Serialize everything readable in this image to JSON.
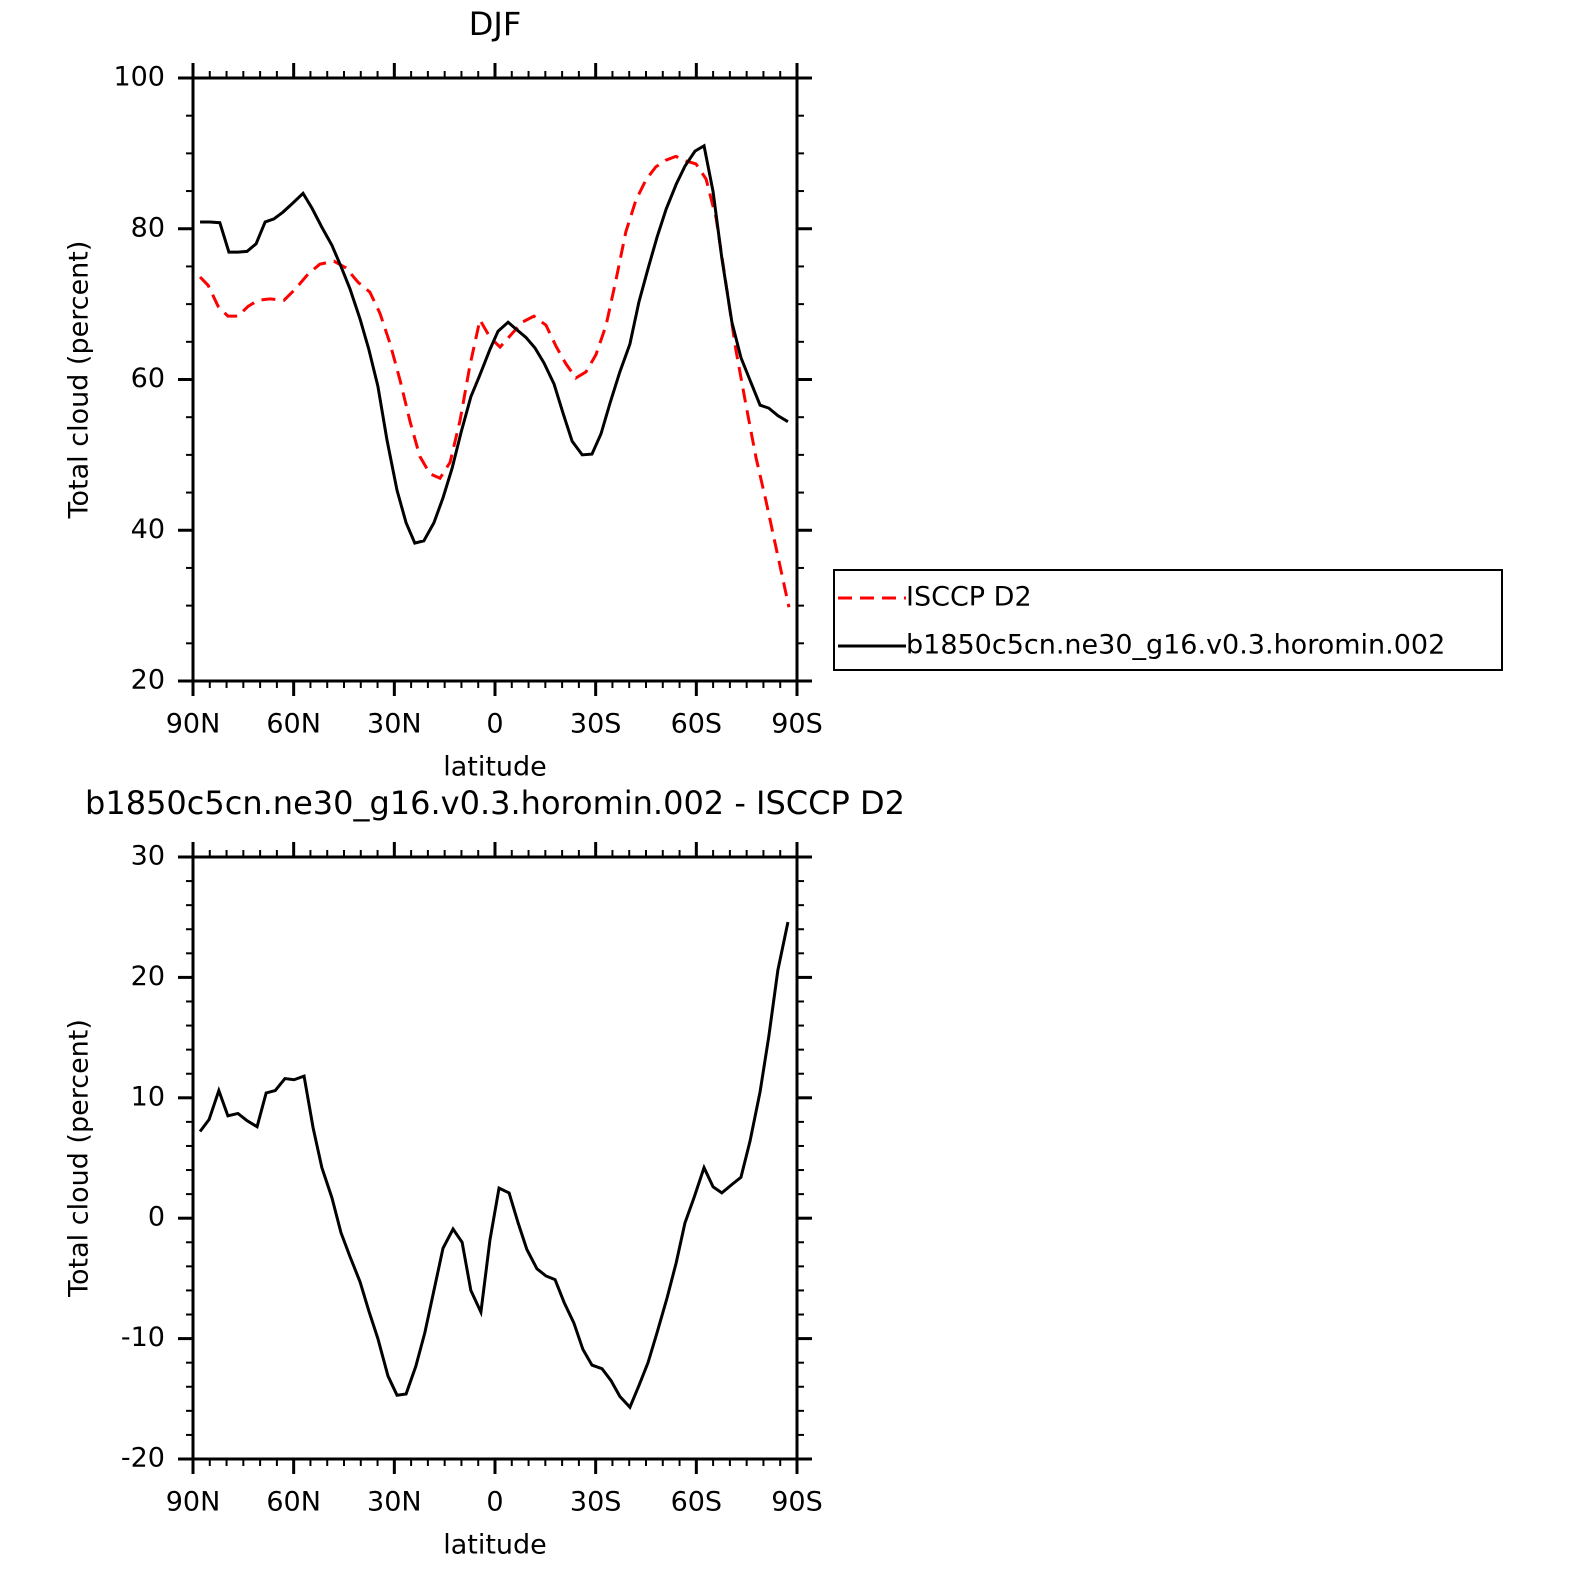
{
  "chart_data": [
    {
      "type": "line",
      "title": "DJF",
      "x_label": "latitude",
      "y_label": "Total cloud (percent)",
      "xlim": [
        90,
        -90
      ],
      "xticks": [
        {
          "value": 90,
          "label": "90N"
        },
        {
          "value": 60,
          "label": "60N"
        },
        {
          "value": 30,
          "label": "30N"
        },
        0,
        {
          "value": -30,
          "label": "30S"
        },
        {
          "value": -60,
          "label": "60S"
        },
        {
          "value": -90,
          "label": "90S"
        }
      ],
      "ylim": [
        20,
        100
      ],
      "yticks": [
        20,
        40,
        60,
        80,
        100
      ],
      "legend": "right",
      "series": [
        {
          "name": "ISCCP D2",
          "color": "#ff0000",
          "dash": true,
          "x": [
            87.9,
            85.5,
            82.5,
            79.6,
            76.6,
            73.6,
            70.6,
            67.1,
            62.9,
            59.3,
            55.7,
            52.2,
            48.0,
            44.4,
            40.8,
            37.3,
            34.3,
            31.3,
            28.3,
            25.3,
            22.4,
            19.4,
            16.4,
            13.4,
            10.4,
            7.5,
            4.5,
            1.5,
            -1.5,
            -4.5,
            -8.1,
            -11.6,
            -15.2,
            -18.2,
            -21.1,
            -24.1,
            -27.1,
            -30.1,
            -33.1,
            -36.0,
            -39.0,
            -42.0,
            -45.0,
            -47.9,
            -50.9,
            -53.9,
            -56.9,
            -59.9,
            -62.9,
            -65.9,
            -68.8,
            -71.8,
            -74.8,
            -77.8,
            -80.7,
            -83.7,
            -87.6
          ],
          "values": [
            73.6,
            72.5,
            69.7,
            68.4,
            68.4,
            69.7,
            70.5,
            70.7,
            70.5,
            72.1,
            74.0,
            75.3,
            75.7,
            74.8,
            72.9,
            71.6,
            68.8,
            64.8,
            59.9,
            54.4,
            49.8,
            47.5,
            46.9,
            49.0,
            54.6,
            61.8,
            67.9,
            65.6,
            64.3,
            65.8,
            67.6,
            68.4,
            67.2,
            64.4,
            62.1,
            60.2,
            61.0,
            63.3,
            67.2,
            73.1,
            79.6,
            83.8,
            86.5,
            88.2,
            89.1,
            89.6,
            89.0,
            88.6,
            86.6,
            81.4,
            72.8,
            63.9,
            56.6,
            49.6,
            44.0,
            37.8,
            29.8
          ]
        },
        {
          "name": "b1850c5cn.ne30_g16.v0.3.horomin.002",
          "color": "#000000",
          "dash": false,
          "x": [
            87.9,
            85.0,
            82.0,
            79.3,
            76.6,
            73.9,
            71.2,
            68.5,
            65.9,
            63.2,
            60.5,
            57.2,
            54.5,
            51.6,
            48.6,
            45.9,
            43.2,
            40.2,
            37.6,
            34.9,
            32.2,
            29.2,
            26.5,
            23.9,
            21.2,
            18.2,
            15.5,
            12.8,
            10.1,
            7.2,
            4.5,
            1.5,
            -0.9,
            -3.9,
            -6.5,
            -9.2,
            -11.9,
            -14.6,
            -17.6,
            -20.3,
            -23.0,
            -26.0,
            -28.9,
            -31.6,
            -34.3,
            -37.2,
            -40.2,
            -42.9,
            -45.6,
            -48.3,
            -51.0,
            -54.0,
            -56.6,
            -59.6,
            -62.3,
            -65.0,
            -67.6,
            -70.6,
            -73.3,
            -76.0,
            -79.0,
            -81.6,
            -84.3,
            -87.3
          ],
          "values": [
            80.9,
            80.9,
            80.8,
            76.9,
            76.9,
            77.0,
            78.0,
            80.9,
            81.3,
            82.2,
            83.3,
            84.7,
            82.7,
            80.2,
            77.8,
            75.0,
            72.0,
            68.0,
            64.0,
            59.1,
            52.0,
            45.3,
            41.0,
            38.3,
            38.6,
            41.0,
            44.3,
            48.2,
            53.0,
            57.7,
            60.6,
            64.0,
            66.4,
            67.6,
            66.6,
            65.6,
            64.2,
            62.2,
            59.4,
            55.5,
            51.8,
            50.0,
            50.1,
            52.8,
            56.9,
            61.0,
            64.7,
            70.3,
            74.7,
            78.9,
            82.6,
            85.9,
            88.3,
            90.3,
            91.0,
            84.9,
            76.1,
            67.6,
            62.9,
            59.9,
            56.6,
            56.2,
            55.2,
            54.4
          ]
        }
      ]
    },
    {
      "type": "line",
      "title": "b1850c5cn.ne30_g16.v0.3.horomin.002 - ISCCP D2",
      "x_label": "latitude",
      "y_label": "Total cloud (percent)",
      "xlim": [
        90,
        -90
      ],
      "xticks": [
        {
          "value": 90,
          "label": "90N"
        },
        {
          "value": 60,
          "label": "60N"
        },
        {
          "value": 30,
          "label": "30N"
        },
        0,
        {
          "value": -30,
          "label": "30S"
        },
        {
          "value": -60,
          "label": "60S"
        },
        {
          "value": -90,
          "label": "90S"
        }
      ],
      "ylim": [
        -20,
        30
      ],
      "yticks": [
        -20,
        -10,
        0,
        10,
        20,
        30
      ],
      "series": [
        {
          "color": "#000000",
          "dash": false,
          "x": [
            87.9,
            85.2,
            82.3,
            79.6,
            76.6,
            73.9,
            70.9,
            68.2,
            65.5,
            62.6,
            59.9,
            56.9,
            54.2,
            51.6,
            48.6,
            45.9,
            43.2,
            40.2,
            37.6,
            34.9,
            31.9,
            29.2,
            26.5,
            23.6,
            20.9,
            18.2,
            15.5,
            12.5,
            9.8,
            7.2,
            4.2,
            1.5,
            -1.2,
            -4.2,
            -6.9,
            -9.5,
            -12.5,
            -15.2,
            -17.9,
            -20.6,
            -23.5,
            -26.2,
            -28.9,
            -31.9,
            -34.6,
            -37.2,
            -40.2,
            -42.9,
            -45.6,
            -48.3,
            -51.3,
            -54.0,
            -56.6,
            -59.3,
            -62.3,
            -65.0,
            -67.6,
            -70.6,
            -73.3,
            -76.0,
            -79.0,
            -81.6,
            -84.3,
            -87.3
          ],
          "values": [
            7.2,
            8.2,
            10.6,
            8.5,
            8.7,
            8.1,
            7.6,
            10.4,
            10.6,
            11.6,
            11.5,
            11.8,
            7.5,
            4.2,
            1.7,
            -1.2,
            -3.2,
            -5.3,
            -7.7,
            -10.0,
            -13.1,
            -14.7,
            -14.6,
            -12.3,
            -9.5,
            -6.0,
            -2.5,
            -0.9,
            -2.0,
            -6.0,
            -7.8,
            -1.8,
            2.5,
            2.1,
            -0.4,
            -2.6,
            -4.2,
            -4.8,
            -5.1,
            -7.0,
            -8.7,
            -10.9,
            -12.2,
            -12.5,
            -13.5,
            -14.8,
            -15.7,
            -13.9,
            -12.0,
            -9.5,
            -6.6,
            -3.7,
            -0.4,
            1.7,
            4.2,
            2.6,
            2.1,
            2.8,
            3.4,
            6.4,
            10.5,
            15.1,
            20.6,
            24.6
          ]
        }
      ]
    }
  ]
}
